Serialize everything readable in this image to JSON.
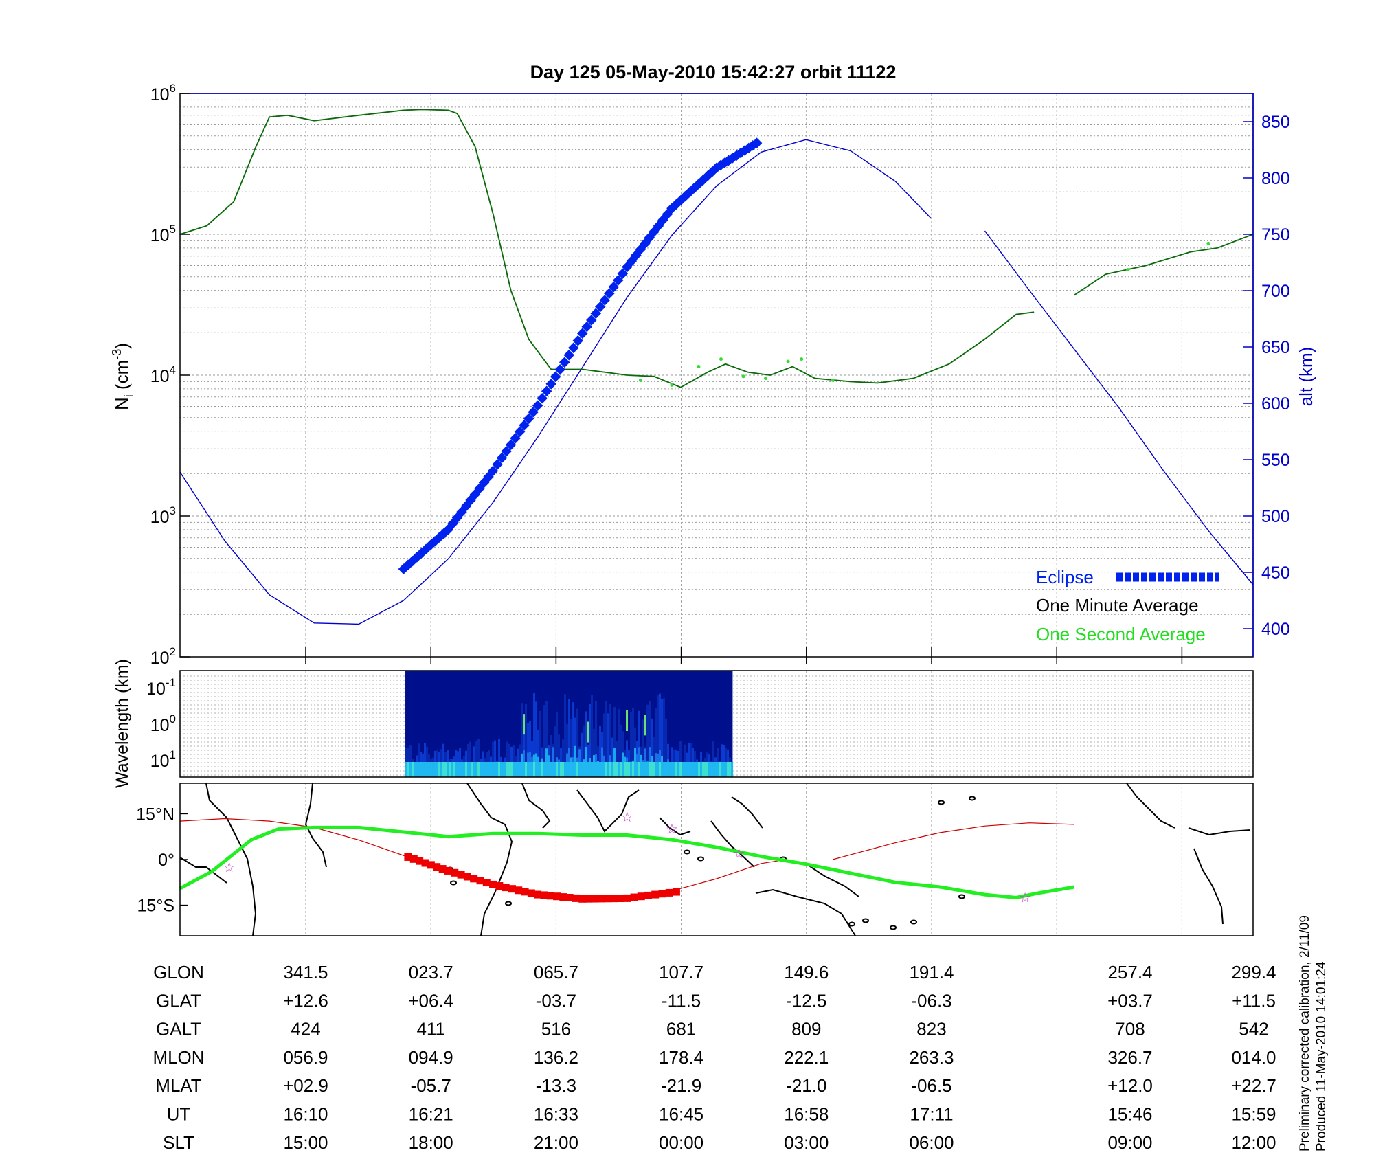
{
  "title": "Day 125  05-May-2010 15:42:27   orbit 11122",
  "chart_data": [
    {
      "type": "line",
      "name": "ion-density-altitude",
      "x_grid_count": 9,
      "left_axis": {
        "label_main": "N",
        "label_sub": "i",
        "label_rest": " (cm",
        "label_sup": "-3",
        "label_end": ")",
        "scale": "log",
        "ylim": [
          100,
          1000000
        ],
        "ticks": [
          {
            "base": "10",
            "exp": "2"
          },
          {
            "base": "10",
            "exp": "3"
          },
          {
            "base": "10",
            "exp": "4"
          },
          {
            "base": "10",
            "exp": "5"
          },
          {
            "base": "10",
            "exp": "6"
          }
        ]
      },
      "right_axis": {
        "label": "alt (km)",
        "ylim": [
          375,
          875
        ],
        "ticks": [
          "400",
          "450",
          "500",
          "550",
          "600",
          "650",
          "700",
          "750",
          "800",
          "850"
        ]
      },
      "colors": {
        "altitude": "#0000cc",
        "one_minute": "#1a5c1a",
        "one_second": "#33dd33",
        "eclipse": "#0022ee"
      },
      "legend": {
        "placement": "bottom-right",
        "entries": [
          {
            "label": "Eclipse",
            "color": "#0022ee"
          },
          {
            "label": "One Minute Average",
            "color": "#000000"
          },
          {
            "label": "One Second Average",
            "color": "#22dd22"
          }
        ]
      },
      "altitude_segments": [
        [
          [
            0.0,
            539
          ],
          [
            0.5,
            478
          ],
          [
            1.0,
            430
          ],
          [
            1.5,
            405
          ],
          [
            2.0,
            404
          ],
          [
            2.5,
            425
          ],
          [
            3.0,
            462
          ],
          [
            3.5,
            512
          ],
          [
            4.0,
            570
          ],
          [
            4.5,
            632
          ],
          [
            5.0,
            694
          ],
          [
            5.5,
            749
          ],
          [
            6.0,
            793
          ],
          [
            6.5,
            823
          ],
          [
            7.0,
            834
          ],
          [
            7.5,
            824
          ],
          [
            8.0,
            797
          ],
          [
            8.4,
            764
          ]
        ],
        [
          [
            9.0,
            753
          ],
          [
            9.5,
            700
          ],
          [
            10.0,
            648
          ],
          [
            10.5,
            596
          ],
          [
            11.0,
            540
          ],
          [
            11.5,
            487
          ],
          [
            12.0,
            439
          ]
        ]
      ],
      "eclipse_segment": [
        [
          2.5,
          453
        ],
        [
          3.0,
          488
        ],
        [
          3.5,
          540
        ],
        [
          4.0,
          598
        ],
        [
          4.5,
          662
        ],
        [
          5.0,
          721
        ],
        [
          5.5,
          773
        ],
        [
          6.0,
          809
        ],
        [
          6.45,
          831
        ]
      ],
      "density_segments": [
        [
          [
            0.0,
            100000
          ],
          [
            0.3,
            115000
          ],
          [
            0.6,
            170000
          ],
          [
            0.85,
            420000
          ],
          [
            1.0,
            680000
          ],
          [
            1.2,
            700000
          ],
          [
            1.5,
            640000
          ],
          [
            2.0,
            700000
          ],
          [
            2.5,
            760000
          ],
          [
            2.7,
            770000
          ],
          [
            3.0,
            760000
          ],
          [
            3.1,
            720000
          ],
          [
            3.3,
            420000
          ],
          [
            3.5,
            140000
          ],
          [
            3.7,
            40000
          ],
          [
            3.9,
            18000
          ],
          [
            4.15,
            11000
          ],
          [
            4.5,
            11000
          ],
          [
            4.75,
            10500
          ],
          [
            5.0,
            10000
          ],
          [
            5.3,
            9800
          ],
          [
            5.6,
            8200
          ],
          [
            5.9,
            10500
          ],
          [
            6.1,
            12000
          ],
          [
            6.35,
            10500
          ],
          [
            6.6,
            10000
          ],
          [
            6.85,
            11500
          ],
          [
            7.1,
            9500
          ],
          [
            7.5,
            9000
          ],
          [
            7.8,
            8800
          ],
          [
            8.2,
            9500
          ],
          [
            8.6,
            12000
          ],
          [
            9.0,
            18000
          ],
          [
            9.35,
            27000
          ],
          [
            9.55,
            28000
          ]
        ],
        [
          [
            10.0,
            37000
          ],
          [
            10.35,
            52000
          ],
          [
            10.8,
            60000
          ],
          [
            11.3,
            75000
          ],
          [
            11.6,
            80000
          ],
          [
            12.0,
            100000
          ]
        ]
      ],
      "density_spikes": [
        [
          5.15,
          9200
        ],
        [
          5.5,
          8500
        ],
        [
          5.8,
          11500
        ],
        [
          6.05,
          13000
        ],
        [
          6.3,
          9800
        ],
        [
          6.55,
          9500
        ],
        [
          6.8,
          12500
        ],
        [
          6.95,
          13000
        ],
        [
          7.3,
          9200
        ],
        [
          10.6,
          56000
        ],
        [
          11.5,
          86000
        ]
      ]
    },
    {
      "type": "heatmap",
      "name": "wavelength-spectrogram",
      "ylabel": "Wavelength (km)",
      "ytick_labels": [
        {
          "base": "10",
          "exp": "-1"
        },
        {
          "base": "10",
          "exp": "0"
        },
        {
          "base": "10",
          "exp": "1"
        }
      ],
      "x_extent": [
        2.52,
        6.18
      ],
      "colormap": "jet"
    },
    {
      "type": "map",
      "name": "orbit-ground-track",
      "ytick_labels": [
        "15°N",
        "0°",
        "15°S"
      ],
      "ylim": [
        -25,
        25
      ],
      "colors": {
        "orbit_track": "#cc0000",
        "magnetic_equator": "#22ee22",
        "eclipse": "#ee0000",
        "stars": "#cc33cc",
        "coast": "#000000"
      },
      "orbit_track": [
        [
          0.0,
          12.6
        ],
        [
          0.5,
          13.4
        ],
        [
          1.0,
          12.6
        ],
        [
          1.5,
          10.5
        ],
        [
          2.0,
          6.4
        ],
        [
          2.5,
          1.3
        ],
        [
          3.0,
          -3.7
        ],
        [
          3.5,
          -8.2
        ],
        [
          4.0,
          -11.5
        ],
        [
          4.5,
          -13.0
        ],
        [
          5.0,
          -12.5
        ],
        [
          5.5,
          -10.3
        ],
        [
          6.0,
          -6.3
        ],
        [
          6.5,
          -1.3
        ],
        [
          6.78,
          0.0
        ]
      ],
      "orbit_track_2": [
        [
          7.3,
          0.0
        ],
        [
          7.5,
          1.6
        ],
        [
          8.0,
          5.5
        ],
        [
          8.5,
          8.8
        ],
        [
          9.0,
          11.0
        ],
        [
          9.5,
          12.0
        ],
        [
          10.0,
          11.5
        ]
      ],
      "eclipse_track": [
        [
          2.55,
          0.8
        ],
        [
          3.0,
          -3.7
        ],
        [
          3.5,
          -8.2
        ],
        [
          4.0,
          -11.5
        ],
        [
          4.5,
          -12.9
        ],
        [
          5.0,
          -12.7
        ],
        [
          5.55,
          -10.6
        ]
      ],
      "magnetic_equator": [
        [
          0.0,
          -9.5
        ],
        [
          0.35,
          -4.0
        ],
        [
          0.8,
          6.5
        ],
        [
          1.1,
          10.0
        ],
        [
          1.5,
          10.5
        ],
        [
          2.0,
          10.5
        ],
        [
          2.5,
          9.0
        ],
        [
          3.0,
          7.5
        ],
        [
          3.5,
          8.5
        ],
        [
          4.0,
          8.5
        ],
        [
          4.5,
          8.0
        ],
        [
          5.0,
          8.0
        ],
        [
          5.5,
          6.5
        ],
        [
          6.0,
          4.0
        ],
        [
          6.5,
          1.0
        ],
        [
          7.0,
          -1.5
        ],
        [
          7.5,
          -4.5
        ],
        [
          8.0,
          -7.5
        ],
        [
          8.5,
          -9.0
        ],
        [
          9.0,
          -11.5
        ],
        [
          9.35,
          -12.5
        ],
        [
          9.6,
          -11.0
        ],
        [
          10.0,
          -9.0
        ]
      ],
      "stars": [
        [
          0.55,
          -2.5
        ],
        [
          5.0,
          14.0
        ],
        [
          5.5,
          10.0
        ],
        [
          6.25,
          2.0
        ],
        [
          9.45,
          -12.5
        ]
      ]
    }
  ],
  "table": {
    "row_labels": [
      "GLON",
      "GLAT",
      "GALT",
      "MLON",
      "MLAT",
      "UT",
      "SLT"
    ],
    "columns": [
      {
        "values": [
          "341.5",
          "+12.6",
          "424",
          "056.9",
          "+02.9",
          "16:10",
          "15:00"
        ]
      },
      {
        "values": [
          "023.7",
          "+06.4",
          "411",
          "094.9",
          "-05.7",
          "16:21",
          "18:00"
        ]
      },
      {
        "values": [
          "065.7",
          "-03.7",
          "516",
          "136.2",
          "-13.3",
          "16:33",
          "21:00"
        ]
      },
      {
        "values": [
          "107.7",
          "-11.5",
          "681",
          "178.4",
          "-21.9",
          "16:45",
          "00:00"
        ]
      },
      {
        "values": [
          "149.6",
          "-12.5",
          "809",
          "222.1",
          "-21.0",
          "16:58",
          "03:00"
        ]
      },
      {
        "values": [
          "191.4",
          "-06.3",
          "823",
          "263.3",
          "-06.5",
          "17:11",
          "06:00"
        ]
      },
      {
        "values": [
          "257.4",
          "+03.7",
          "708",
          "326.7",
          "+12.0",
          "15:46",
          "09:00"
        ]
      },
      {
        "values": [
          "299.4",
          "+11.5",
          "542",
          "014.0",
          "+22.7",
          "15:59",
          "12:00"
        ]
      }
    ]
  },
  "footnote": {
    "line1": "Preliminary corrected calibration, 2/11/09",
    "line2": "Produced 11-May-2010 14:01:24"
  }
}
